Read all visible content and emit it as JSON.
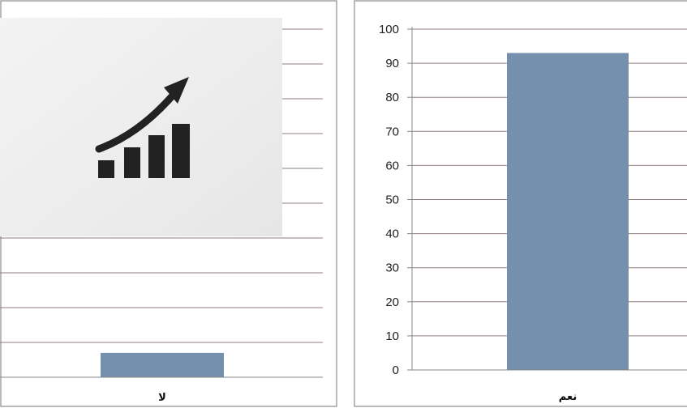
{
  "chart_data": [
    {
      "type": "bar",
      "categories": [
        "لا"
      ],
      "values": [
        7
      ],
      "ylim": [
        0,
        100
      ],
      "grid": true,
      "bar_color": "#7590ad",
      "overlay_icon": "growth-chart-icon"
    },
    {
      "type": "bar",
      "categories": [
        "نعم"
      ],
      "values": [
        93
      ],
      "ylim": [
        0,
        100
      ],
      "yticks": [
        "0",
        "10",
        "20",
        "30",
        "40",
        "50",
        "60",
        "70",
        "80",
        "90",
        "100"
      ],
      "grid": true,
      "bar_color": "#7590ad"
    }
  ]
}
